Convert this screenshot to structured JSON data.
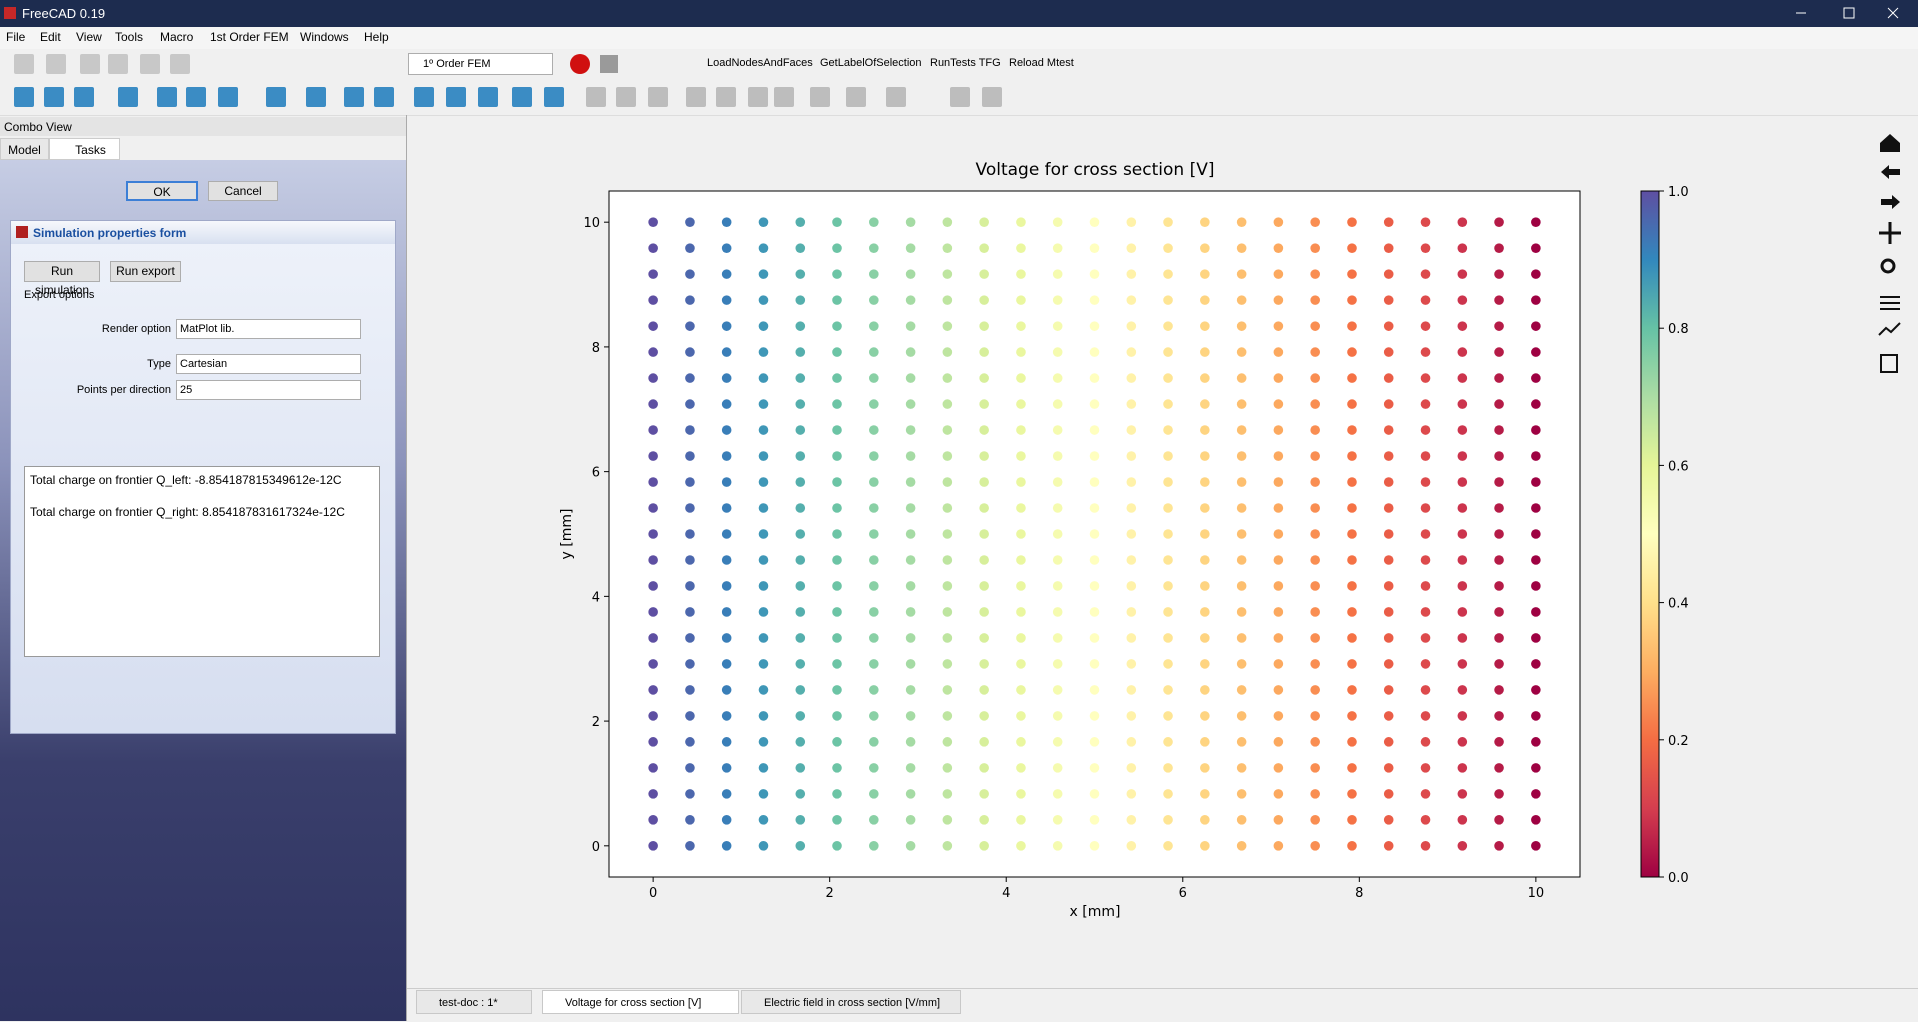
{
  "window": {
    "title": "FreeCAD 0.19"
  },
  "menu": [
    "File",
    "Edit",
    "View",
    "Tools",
    "Macro",
    "1st Order FEM",
    "Windows",
    "Help"
  ],
  "toolbar": {
    "workbench": "1º Order FEM",
    "macros": [
      "LoadNodesAndFaces",
      "GetLabelOfSelection",
      "RunTests TFG",
      "Reload Mtest"
    ]
  },
  "combo_view": {
    "title": "Combo View",
    "tabs": [
      "Model",
      "Tasks"
    ]
  },
  "task": {
    "ok": "OK",
    "cancel": "Cancel",
    "form_title": "Simulation properties form",
    "buttons": [
      "Run simulation",
      "Run export"
    ],
    "section": "Export options",
    "fields": [
      {
        "label": "Render option",
        "value": "MatPlot lib."
      },
      {
        "label": "Type",
        "value": "Cartesian"
      },
      {
        "label": "Points per direction",
        "value": 25
      }
    ],
    "output": [
      "Total charge on frontier Q_left: -8.854187815349612e-12C",
      "Total charge on frontier Q_right: 8.854187831617324e-12C"
    ]
  },
  "doc_tabs": [
    "test-doc : 1*",
    "Voltage for cross section [V]",
    "Electric field in cross section [V/mm]"
  ],
  "chart_data": {
    "type": "scatter",
    "title": "Voltage for cross section [V]",
    "x_label": "x [mm]",
    "y_label": "y [mm]",
    "x": [
      0,
      0.417,
      0.833,
      1.25,
      1.667,
      2.083,
      2.5,
      2.917,
      3.333,
      3.75,
      4.167,
      4.583,
      5,
      5.417,
      5.833,
      6.25,
      6.667,
      7.083,
      7.5,
      7.917,
      8.333,
      8.75,
      9.167,
      9.583,
      10
    ],
    "y": [
      0,
      0.417,
      0.833,
      1.25,
      1.667,
      2.083,
      2.5,
      2.917,
      3.333,
      3.75,
      4.167,
      4.583,
      5,
      5.417,
      5.833,
      6.25,
      6.667,
      7.083,
      7.5,
      7.917,
      8.333,
      8.75,
      9.167,
      9.583,
      10
    ],
    "values": [
      1,
      0.958,
      0.917,
      0.875,
      0.833,
      0.792,
      0.75,
      0.708,
      0.667,
      0.625,
      0.583,
      0.542,
      0.5,
      0.458,
      0.417,
      0.375,
      0.333,
      0.292,
      0.25,
      0.208,
      0.167,
      0.125,
      0.083,
      0.042,
      0
    ],
    "xlim": [
      -0.5,
      10.5
    ],
    "ylim": [
      -0.5,
      10.5
    ],
    "xticks": [
      0,
      2,
      4,
      6,
      8,
      10
    ],
    "yticks": [
      0,
      2,
      4,
      6,
      8,
      10
    ],
    "clim": [
      0,
      1
    ],
    "cticks": [
      {
        "value": 0,
        "label": "0.0"
      },
      {
        "value": 0.2,
        "label": "0.2"
      },
      {
        "value": 0.4,
        "label": "0.4"
      },
      {
        "value": 0.6,
        "label": "0.6"
      },
      {
        "value": 0.8,
        "label": "0.8"
      },
      {
        "value": 1,
        "label": "1.0"
      }
    ],
    "colormap": [
      "#9e0142",
      "#d53e4f",
      "#f46d43",
      "#fdae61",
      "#fee08b",
      "#ffffbf",
      "#e6f598",
      "#abdda4",
      "#66c2a5",
      "#3288bd",
      "#5e4fa2"
    ]
  }
}
